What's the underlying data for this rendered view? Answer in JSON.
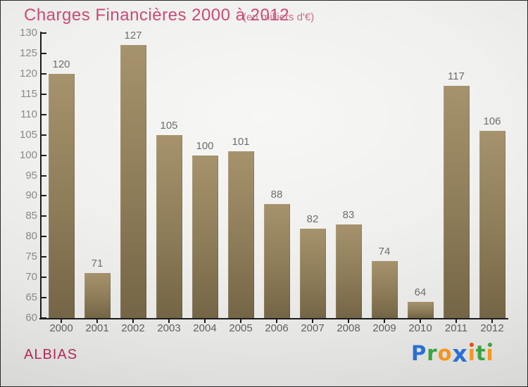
{
  "header": {
    "title": "Charges Financières 2000 à 2012",
    "subtitle": "(en milliers d'€)",
    "title_color": "#c84b78",
    "subtitle_color": "#c96d8f"
  },
  "chart_data": {
    "type": "bar",
    "title": "Charges Financières 2000 à 2012",
    "subtitle": "(en milliers d'€)",
    "categories": [
      "2000",
      "2001",
      "2002",
      "2003",
      "2004",
      "2005",
      "2006",
      "2007",
      "2008",
      "2009",
      "2010",
      "2011",
      "2012"
    ],
    "values": [
      120,
      71,
      127,
      105,
      100,
      101,
      88,
      82,
      83,
      74,
      64,
      117,
      106
    ],
    "xlabel": "",
    "ylabel": "",
    "ylim": [
      60,
      130
    ],
    "ytick_step": 5,
    "yticks": [
      60,
      65,
      70,
      75,
      80,
      85,
      90,
      95,
      100,
      105,
      110,
      115,
      120,
      125,
      130
    ],
    "grid": false,
    "legend": false,
    "value_labels_shown": true,
    "colors": {
      "bar_top": "#a6936d",
      "bar_mid": "#8d7c58",
      "bar_bottom": "#746546",
      "axis": "#1c1c1c",
      "ytick_label": "#8a8a8a",
      "xtick_label": "#5f5f5f",
      "value_label": "#6e6e6e"
    }
  },
  "footer": {
    "place_label": "ALBIAS",
    "place_color": "#b22a5a"
  },
  "logo": {
    "name": "Proxiti",
    "letters": [
      {
        "ch": "P",
        "color": "#2b6fd4"
      },
      {
        "ch": "r",
        "color": "#3aa53a"
      },
      {
        "ch": "o",
        "color": "#f7941d"
      },
      {
        "ch": "x",
        "color": "#2b6fd4",
        "big": true
      },
      {
        "ch": "ı",
        "color": "#f7941d",
        "dot": "#e84e0f"
      },
      {
        "ch": "t",
        "color": "#3aa53a"
      },
      {
        "ch": "ı",
        "color": "#f7941d",
        "dot": "#3aa53a"
      }
    ]
  }
}
